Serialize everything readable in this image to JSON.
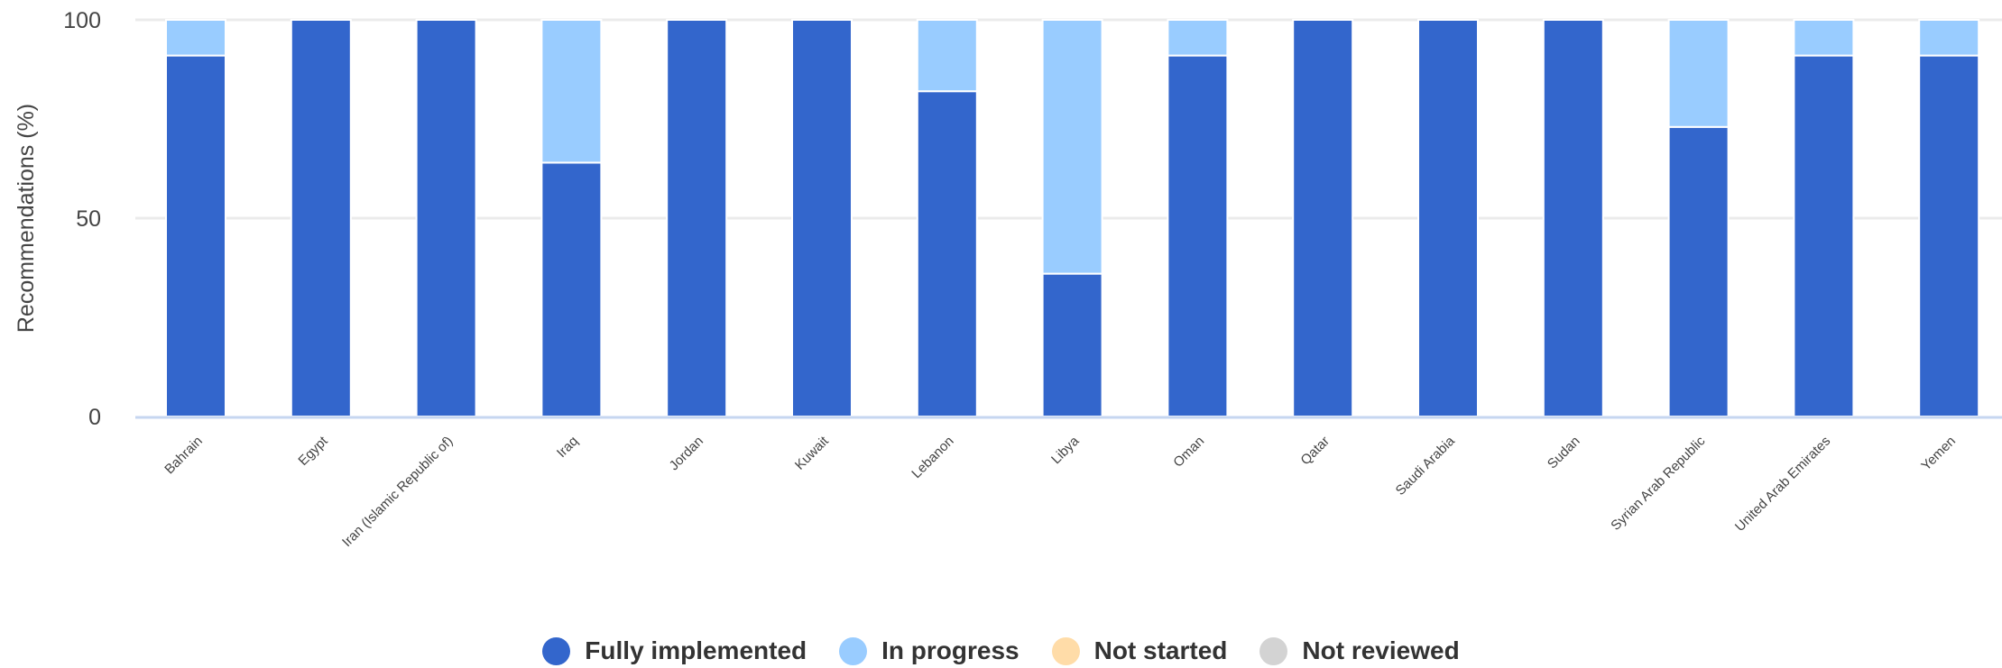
{
  "chart_data": {
    "type": "bar",
    "stacked": true,
    "ylabel": "Recommendations (%)",
    "ylim": [
      0,
      100
    ],
    "yticks": [
      "0",
      "50",
      "100"
    ],
    "grid": true,
    "categories": [
      "Bahrain",
      "Egypt",
      "Iran (Islamic Republic of)",
      "Iraq",
      "Jordan",
      "Kuwait",
      "Lebanon",
      "Libya",
      "Oman",
      "Qatar",
      "Saudi Arabia",
      "Sudan",
      "Syrian Arab Republic",
      "United Arab Emirates",
      "Yemen"
    ],
    "series": [
      {
        "name": "Fully implemented",
        "color": "#3366cc",
        "values": [
          91,
          100,
          100,
          64,
          100,
          100,
          82,
          36,
          91,
          100,
          100,
          100,
          73,
          91,
          91
        ]
      },
      {
        "name": "In progress",
        "color": "#99ccff",
        "values": [
          9,
          0,
          0,
          36,
          0,
          0,
          18,
          64,
          9,
          0,
          0,
          0,
          27,
          9,
          9
        ]
      },
      {
        "name": "Not started",
        "color": "#ffdca8",
        "values": [
          0,
          0,
          0,
          0,
          0,
          0,
          0,
          0,
          0,
          0,
          0,
          0,
          0,
          0,
          0
        ]
      },
      {
        "name": "Not reviewed",
        "color": "#d3d3d3",
        "values": [
          0,
          0,
          0,
          0,
          0,
          0,
          0,
          0,
          0,
          0,
          0,
          0,
          0,
          0,
          0
        ]
      }
    ],
    "legend_position": "bottom"
  }
}
